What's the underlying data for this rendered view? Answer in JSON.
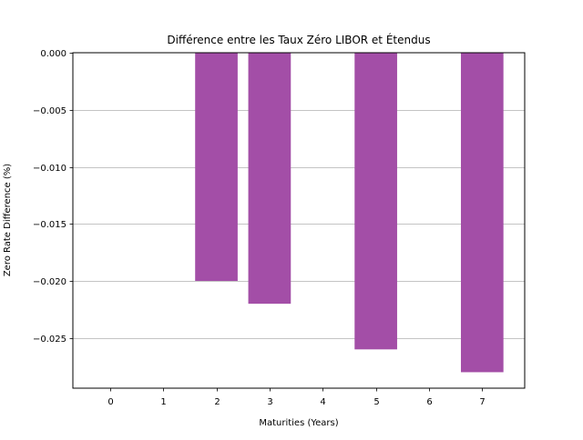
{
  "chart_data": {
    "type": "bar",
    "title": "Différence entre les Taux Zéro LIBOR et Étendus",
    "xlabel": "Maturities (Years)",
    "ylabel": "Zero Rate Difference (%)",
    "categories": [
      2,
      3,
      5,
      7
    ],
    "values": [
      -0.02,
      -0.022,
      -0.026,
      -0.028
    ],
    "bar_color": "#a34ea7",
    "xlim": [
      -0.7,
      7.8
    ],
    "ylim": [
      -0.0294,
      0.0
    ],
    "x_ticks": [
      0,
      1,
      2,
      3,
      4,
      5,
      6,
      7
    ],
    "x_tick_labels": [
      "0",
      "1",
      "2",
      "3",
      "4",
      "5",
      "6",
      "7"
    ],
    "y_ticks": [
      0.0,
      -0.005,
      -0.01,
      -0.015,
      -0.02,
      -0.025
    ],
    "y_tick_labels": [
      "0.000",
      "−0.005",
      "−0.010",
      "−0.015",
      "−0.020",
      "−0.025"
    ],
    "grid": "y-axis only",
    "legend": "none"
  }
}
